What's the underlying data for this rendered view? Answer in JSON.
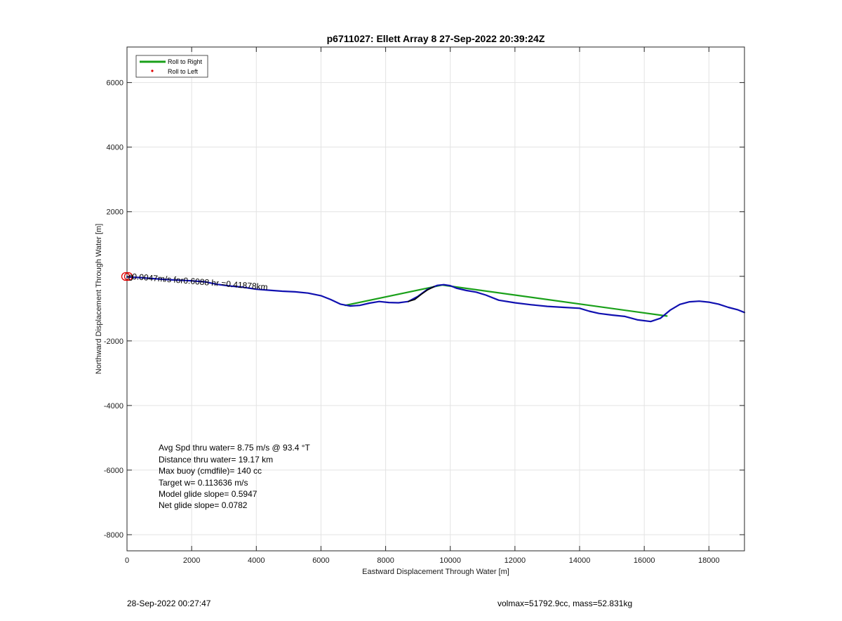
{
  "chart_data": {
    "type": "line",
    "title": "p6711027: Ellett Array 8 27-Sep-2022 20:39:24Z",
    "xlabel": "Eastward Displacement Through Water [m]",
    "ylabel": "Northward Displacement Through Water [m]",
    "xlim": [
      0,
      19100
    ],
    "ylim": [
      -8500,
      7100
    ],
    "xticks": [
      0,
      2000,
      4000,
      6000,
      8000,
      10000,
      12000,
      14000,
      16000,
      18000
    ],
    "yticks": [
      -8000,
      -6000,
      -4000,
      -2000,
      0,
      2000,
      4000,
      6000
    ],
    "ytick_labels_shown": [
      "-8000",
      "-6000",
      "-4000",
      "-2000",
      "",
      "2000",
      "4000",
      "6000"
    ],
    "grid": true,
    "legend_position": "top-left",
    "legend": [
      {
        "label": "Roll to Right",
        "color": "#1aa01a",
        "style": "line"
      },
      {
        "label": "Roll to Left",
        "color": "#e00000",
        "style": "dot"
      }
    ],
    "series": [
      {
        "name": "Roll to Right",
        "color": "#1aa01a",
        "x": [
          6750,
          9750,
          16700
        ],
        "y": [
          -900,
          -270,
          -1230
        ]
      },
      {
        "color": "#1010b0",
        "x": [
          0,
          400,
          800,
          1200,
          1600,
          2000,
          2400,
          2800,
          3200,
          3600,
          4000,
          4400,
          4800,
          5200,
          5600,
          6000,
          6300,
          6600,
          6900,
          7200,
          7500,
          7800,
          8100,
          8400,
          8700,
          9000,
          9300,
          9600,
          9800,
          10000,
          10200,
          10500,
          10800,
          11100,
          11500,
          12000,
          12500,
          13000,
          13500,
          14000,
          14300,
          14600,
          15000,
          15400,
          15800,
          16200,
          16500,
          16800,
          17100,
          17400,
          17700,
          18000,
          18300,
          18600,
          18900,
          19100
        ],
        "y": [
          -20,
          -40,
          -70,
          -100,
          -120,
          -140,
          -170,
          -250,
          -300,
          -340,
          -400,
          -430,
          -460,
          -480,
          -520,
          -600,
          -720,
          -860,
          -920,
          -900,
          -830,
          -780,
          -810,
          -820,
          -780,
          -620,
          -400,
          -280,
          -260,
          -290,
          -370,
          -440,
          -490,
          -580,
          -740,
          -820,
          -880,
          -930,
          -960,
          -990,
          -1080,
          -1150,
          -1200,
          -1240,
          -1350,
          -1400,
          -1300,
          -1050,
          -870,
          -790,
          -770,
          -800,
          -860,
          -960,
          -1040,
          -1120
        ]
      },
      {
        "color": "#000000",
        "x": [
          8700,
          8900,
          9100,
          9300,
          9500
        ],
        "y": [
          -780,
          -720,
          -560,
          -420,
          -320
        ]
      }
    ],
    "start_marker": {
      "x": 0,
      "y": 0,
      "color": "#e00000"
    }
  },
  "annotation": "0.0047m/s for0.6088 hr =0.41878km",
  "start_label": "0",
  "stats": [
    "Avg Spd thru water=  8.75 m/s @  93.4 °T",
    "Distance thru water= 19.17 km",
    "Max buoy (cmdfile)= 140 cc",
    "Target w= 0.113636 m/s",
    "Model glide slope= 0.5947",
    "Net glide slope= 0.0782"
  ],
  "footer": {
    "left": "28-Sep-2022 00:27:47",
    "right": "volmax=51792.9cc, mass=52.831kg"
  }
}
